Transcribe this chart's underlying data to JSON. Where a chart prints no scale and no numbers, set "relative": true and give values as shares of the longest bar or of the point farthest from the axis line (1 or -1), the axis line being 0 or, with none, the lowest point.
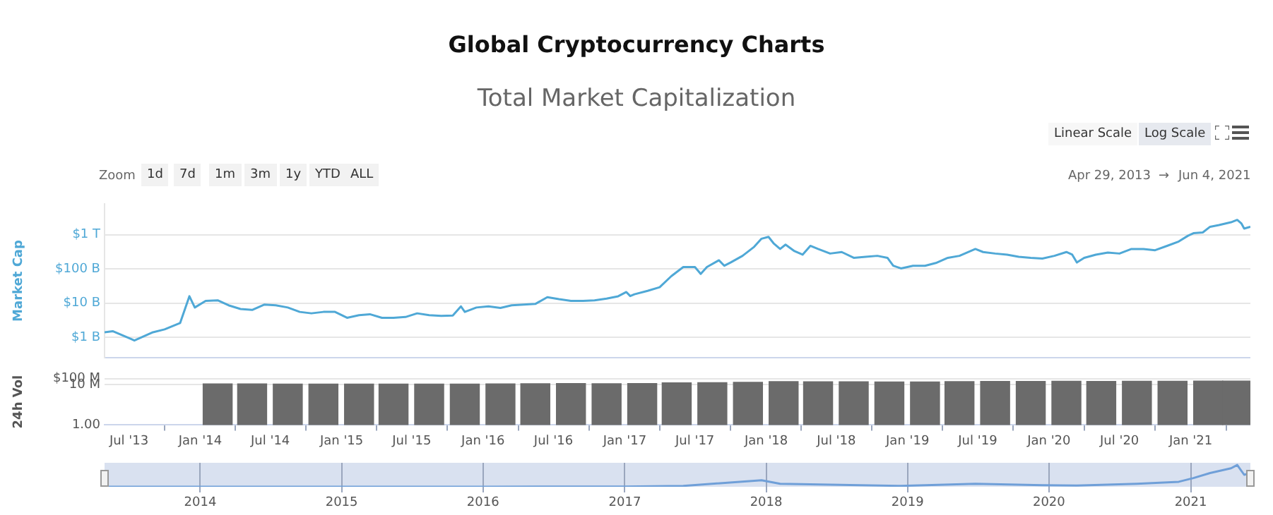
{
  "chart_data": [
    {
      "type": "line",
      "title": "Global Cryptocurrency Charts",
      "subtitle": "Total Market Capitalization",
      "ylabel": "Market Cap",
      "annotations": [
        "Zoom",
        "1d",
        "7d",
        "1m",
        "3m",
        "1y",
        "YTD",
        "ALL",
        "Linear Scale",
        "Log Scale",
        "Apr 29, 2013",
        "→",
        "Jun 4, 2021"
      ],
      "x": [
        "2013-04-29",
        "2013-05-20",
        "2013-07-05",
        "2013-07-15",
        "2013-09-01",
        "2013-10-01",
        "2013-11-10",
        "2013-12-04",
        "2013-12-18",
        "2014-01-15",
        "2014-02-15",
        "2014-03-15",
        "2014-04-15",
        "2014-05-15",
        "2014-06-15",
        "2014-07-15",
        "2014-08-15",
        "2014-09-15",
        "2014-10-15",
        "2014-11-15",
        "2014-12-15",
        "2015-01-15",
        "2015-02-15",
        "2015-03-15",
        "2015-04-15",
        "2015-05-15",
        "2015-06-15",
        "2015-07-15",
        "2015-08-15",
        "2015-09-15",
        "2015-10-15",
        "2015-11-05",
        "2015-11-15",
        "2015-12-15",
        "2016-01-15",
        "2016-02-15",
        "2016-03-15",
        "2016-04-15",
        "2016-05-15",
        "2016-06-15",
        "2016-07-15",
        "2016-08-15",
        "2016-09-15",
        "2016-10-15",
        "2016-11-15",
        "2016-12-15",
        "2017-01-05",
        "2017-01-15",
        "2017-01-26",
        "2017-03-01",
        "2017-04-01",
        "2017-05-01",
        "2017-06-01",
        "2017-07-01",
        "2017-07-16",
        "2017-08-01",
        "2017-09-01",
        "2017-09-15",
        "2017-10-01",
        "2017-11-01",
        "2017-12-01",
        "2017-12-20",
        "2018-01-07",
        "2018-01-20",
        "2018-02-06",
        "2018-02-20",
        "2018-03-15",
        "2018-04-05",
        "2018-04-25",
        "2018-05-15",
        "2018-06-15",
        "2018-07-15",
        "2018-08-15",
        "2018-09-15",
        "2018-10-15",
        "2018-11-10",
        "2018-11-25",
        "2018-12-15",
        "2019-01-15",
        "2019-02-15",
        "2019-03-15",
        "2019-04-15",
        "2019-05-15",
        "2019-06-25",
        "2019-07-15",
        "2019-08-15",
        "2019-09-15",
        "2019-10-15",
        "2019-11-15",
        "2019-12-15",
        "2020-01-15",
        "2020-02-15",
        "2020-03-01",
        "2020-03-13",
        "2020-04-01",
        "2020-05-01",
        "2020-06-01",
        "2020-07-01",
        "2020-08-01",
        "2020-09-01",
        "2020-10-01",
        "2020-11-01",
        "2020-12-01",
        "2020-12-25",
        "2021-01-08",
        "2021-02-01",
        "2021-02-20",
        "2021-03-15",
        "2021-04-15",
        "2021-05-01",
        "2021-05-12",
        "2021-05-19",
        "2021-06-04"
      ],
      "series": [
        {
          "color": "#4fa8d6",
          "values": [
            1400000000.0,
            1500000000.0,
            900000000.0,
            800000000.0,
            1400000000.0,
            1700000000.0,
            2600000000.0,
            15800000000.0,
            7400000000.0,
            11600000000.0,
            12000000000.0,
            8600000000.0,
            6700000000.0,
            6300000000.0,
            9000000000.0,
            8600000000.0,
            7400000000.0,
            5500000000.0,
            5000000000.0,
            5500000000.0,
            5500000000.0,
            3700000000.0,
            4400000000.0,
            4700000000.0,
            3700000000.0,
            3700000000.0,
            3900000000.0,
            5000000000.0,
            4400000000.0,
            4200000000.0,
            4300000000.0,
            8000000000.0,
            5500000000.0,
            7400000000.0,
            8000000000.0,
            7200000000.0,
            8600000000.0,
            9000000000.0,
            9400000000.0,
            14800000000.0,
            13000000000.0,
            11600000000.0,
            11600000000.0,
            12000000000.0,
            13500000000.0,
            15800000000.0,
            21000000000.0,
            16000000000.0,
            18000000000.0,
            22700000000.0,
            29000000000.0,
            61000000000.0,
            113000000000.0,
            113000000000.0,
            71000000000.0,
            113000000000.0,
            178000000000.0,
            123000000000.0,
            153000000000.0,
            240000000000.0,
            440000000000.0,
            760000000000.0,
            860000000000.0,
            560000000000.0,
            380000000000.0,
            510000000000.0,
            330000000000.0,
            260000000000.0,
            470000000000.0,
            380000000000.0,
            280000000000.0,
            310000000000.0,
            210000000000.0,
            225000000000.0,
            240000000000.0,
            210000000000.0,
            123000000000.0,
            103000000000.0,
            123000000000.0,
            123000000000.0,
            148000000000.0,
            210000000000.0,
            240000000000.0,
            380000000000.0,
            310000000000.0,
            280000000000.0,
            260000000000.0,
            225000000000.0,
            210000000000.0,
            200000000000.0,
            240000000000.0,
            310000000000.0,
            260000000000.0,
            153000000000.0,
            210000000000.0,
            260000000000.0,
            300000000000.0,
            280000000000.0,
            380000000000.0,
            380000000000.0,
            350000000000.0,
            470000000000.0,
            630000000000.0,
            930000000000.0,
            1100000000000.0,
            1160000000000.0,
            1700000000000.0,
            1900000000000.0,
            2300000000000.0,
            2700000000000.0,
            2100000000000.0,
            1500000000000.0,
            1700000000000.0
          ]
        }
      ],
      "xlim": [
        "2013-04-29",
        "2021-06-04"
      ],
      "ylim": [
        250000000.0,
        8000000000000.0
      ],
      "yticks": [
        {
          "value": 1000000000.0,
          "label": "$1 B"
        },
        {
          "value": 10000000000.0,
          "label": "$10 B"
        },
        {
          "value": 100000000000.0,
          "label": "$100 B"
        },
        {
          "value": 1000000000000.0,
          "label": "$1 T"
        }
      ],
      "log": true,
      "grid": "y",
      "tick_labels": "y",
      "marker": "none",
      "legend": false
    },
    {
      "type": "bar",
      "ylabel": "24h Vol",
      "x": [
        "2014-02-15",
        "2014-05-15",
        "2014-08-15",
        "2014-11-15",
        "2015-02-15",
        "2015-05-15",
        "2015-08-15",
        "2015-11-15",
        "2016-02-15",
        "2016-05-15",
        "2016-08-15",
        "2016-11-15",
        "2017-02-15",
        "2017-05-15",
        "2017-08-15",
        "2017-11-15",
        "2018-02-15",
        "2018-05-15",
        "2018-08-15",
        "2018-11-15",
        "2019-02-15",
        "2019-05-15",
        "2019-08-15",
        "2019-11-15",
        "2020-02-15",
        "2020-05-15",
        "2020-08-15",
        "2020-11-15",
        "2021-02-15",
        "2021-05-01"
      ],
      "series": [
        {
          "color": "#6b6b6b",
          "values": [
            13000000.0,
            13000000.0,
            12000000.0,
            12000000.0,
            12000000.0,
            12000000.0,
            12000000.0,
            12000000.0,
            13000000.0,
            14000000.0,
            15000000.0,
            14000000.0,
            15000000.0,
            19000000.0,
            21000000.0,
            23000000.0,
            32000000.0,
            30000000.0,
            29000000.0,
            28000000.0,
            28000000.0,
            32000000.0,
            33000000.0,
            34000000.0,
            36000000.0,
            35000000.0,
            36000000.0,
            36000000.0,
            38000000.0,
            38000000.0
          ]
        }
      ],
      "xlim": [
        "2013-04-29",
        "2021-06-04"
      ],
      "xticks": [
        {
          "value": "2013-07-01",
          "label": "Jul '13"
        },
        {
          "value": "2014-01-01",
          "label": "Jan '14"
        },
        {
          "value": "2014-07-01",
          "label": "Jul '14"
        },
        {
          "value": "2015-01-01",
          "label": "Jan '15"
        },
        {
          "value": "2015-07-01",
          "label": "Jul '15"
        },
        {
          "value": "2016-01-01",
          "label": "Jan '16"
        },
        {
          "value": "2016-07-01",
          "label": "Jul '16"
        },
        {
          "value": "2017-01-01",
          "label": "Jan '17"
        },
        {
          "value": "2017-07-01",
          "label": "Jul '17"
        },
        {
          "value": "2018-01-01",
          "label": "Jan '18"
        },
        {
          "value": "2018-07-01",
          "label": "Jul '18"
        },
        {
          "value": "2019-01-01",
          "label": "Jan '19"
        },
        {
          "value": "2019-07-01",
          "label": "Jul '19"
        },
        {
          "value": "2020-01-01",
          "label": "Jan '20"
        },
        {
          "value": "2020-07-01",
          "label": "Jul '20"
        },
        {
          "value": "2021-01-01",
          "label": "Jan '21"
        }
      ],
      "ylim": [
        1,
        100000000.0
      ],
      "yticks": [
        {
          "value": 1,
          "label": "1.00"
        },
        {
          "value": 10000000.0,
          "label": "10 M"
        },
        {
          "value": 100000000.0,
          "label": "$100 M"
        }
      ],
      "log": true,
      "grid": "y",
      "legend": false
    },
    {
      "type": "line",
      "relative": true,
      "x": [
        "2013-04-29",
        "2014-01-01",
        "2015-01-01",
        "2016-01-01",
        "2017-01-01",
        "2017-06-01",
        "2017-12-20",
        "2018-02-06",
        "2018-06-15",
        "2018-12-15",
        "2019-06-25",
        "2019-12-15",
        "2020-03-13",
        "2020-08-15",
        "2020-12-01",
        "2021-01-08",
        "2021-02-20",
        "2021-04-15",
        "2021-05-01",
        "2021-05-19",
        "2021-06-04"
      ],
      "series": [
        {
          "color": "#6f9fd8",
          "values": [
            0.001,
            0.004,
            0.002,
            0.003,
            0.006,
            0.04,
            0.3,
            0.14,
            0.1,
            0.04,
            0.14,
            0.07,
            0.06,
            0.14,
            0.23,
            0.4,
            0.63,
            0.85,
            1,
            0.55,
            0.63
          ]
        }
      ],
      "xlim": [
        "2013-04-29",
        "2021-06-04"
      ],
      "xticks": [
        {
          "value": "2014-01-01",
          "label": "2014"
        },
        {
          "value": "2015-01-01",
          "label": "2015"
        },
        {
          "value": "2016-01-01",
          "label": "2016"
        },
        {
          "value": "2017-01-01",
          "label": "2017"
        },
        {
          "value": "2018-01-01",
          "label": "2018"
        },
        {
          "value": "2019-01-01",
          "label": "2019"
        },
        {
          "value": "2020-01-01",
          "label": "2020"
        },
        {
          "value": "2021-01-01",
          "label": "2021"
        }
      ],
      "bands": [
        {
          "axis": "x",
          "from": "2013-04-29",
          "to": "2021-06-04",
          "color": "#d9e1f0"
        }
      ],
      "grid": "x",
      "tick_labels": "x",
      "marker": "none",
      "legend": false
    }
  ]
}
